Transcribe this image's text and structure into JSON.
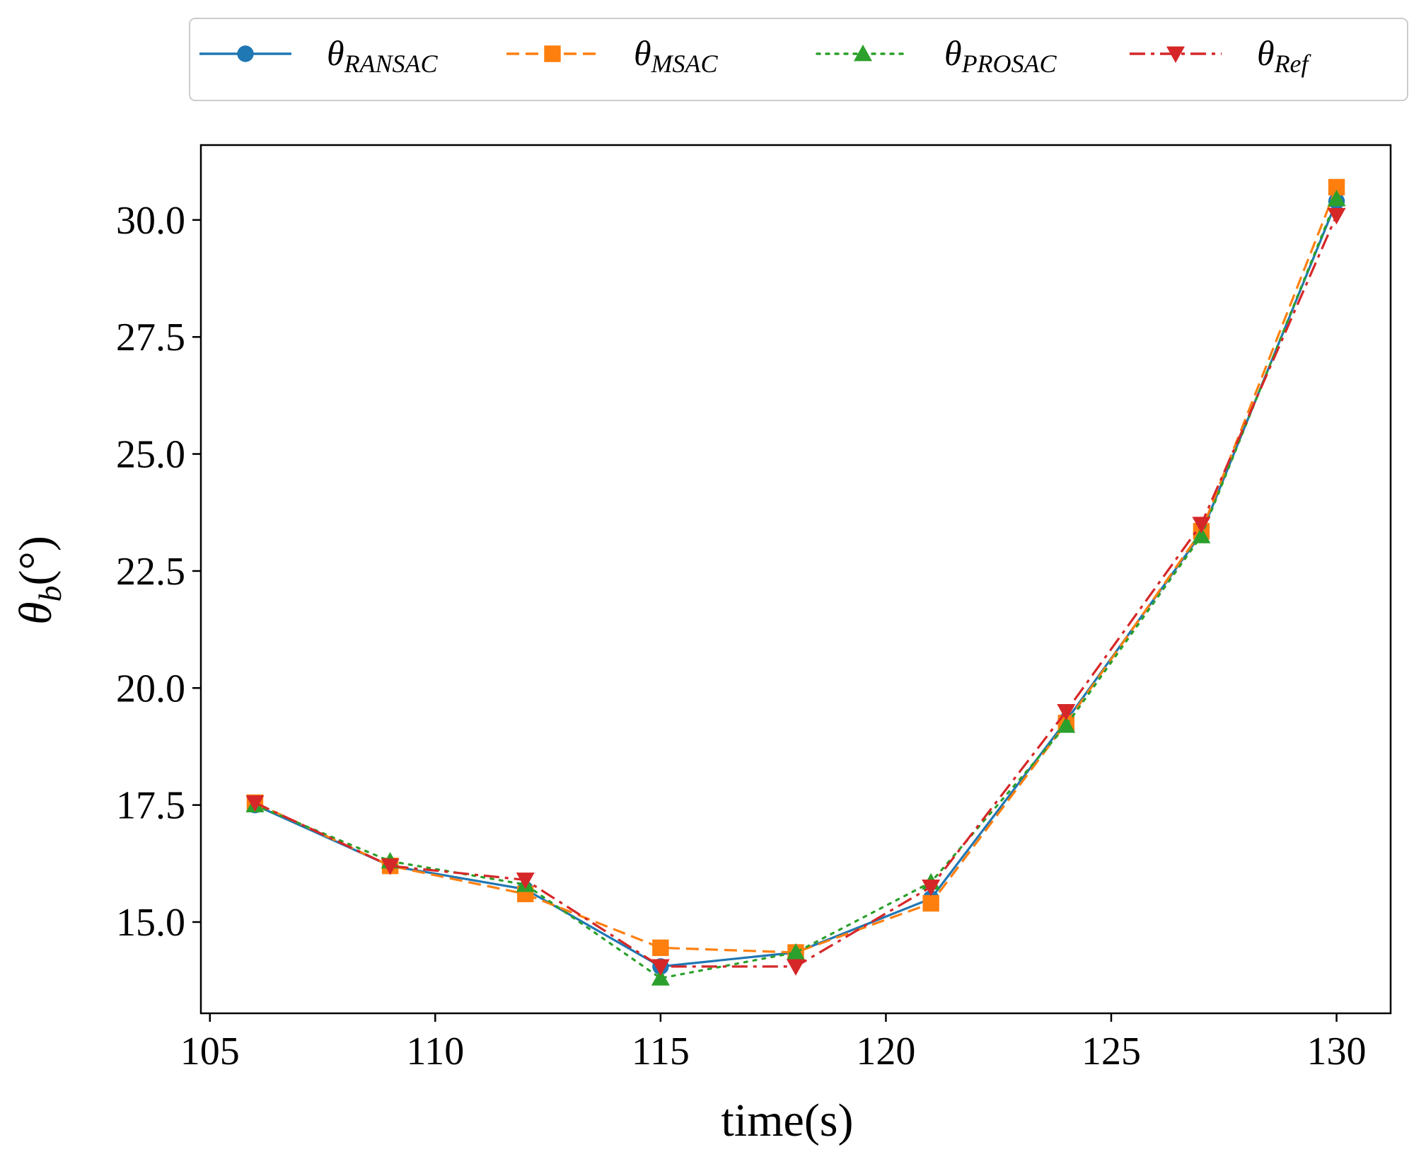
{
  "chart_data": {
    "type": "line",
    "xlabel": "time(s)",
    "ylabel_main": "θ",
    "ylabel_sub": "b",
    "ylabel_unit": "(°)",
    "xlim": [
      104.8,
      131.2
    ],
    "ylim": [
      13.05,
      31.6
    ],
    "xticks": [
      105,
      110,
      115,
      120,
      125,
      130
    ],
    "yticks": [
      15.0,
      17.5,
      20.0,
      22.5,
      25.0,
      27.5,
      30.0
    ],
    "grid": false,
    "legend_position": "top",
    "x": [
      106,
      109,
      112,
      115,
      118,
      121,
      124,
      127,
      130
    ],
    "series": [
      {
        "name_main": "θ",
        "name_sub": "RANSAC",
        "color": "#1f77b4",
        "marker": "circle",
        "linestyle": "solid",
        "values": [
          17.5,
          16.2,
          15.7,
          14.05,
          14.35,
          15.5,
          19.3,
          23.3,
          30.4
        ]
      },
      {
        "name_main": "θ",
        "name_sub": "MSAC",
        "color": "#ff7f0e",
        "marker": "square",
        "linestyle": "dashed",
        "values": [
          17.55,
          16.2,
          15.6,
          14.45,
          14.35,
          15.4,
          19.25,
          23.35,
          30.7
        ]
      },
      {
        "name_main": "θ",
        "name_sub": "PROSAC",
        "color": "#2ca02c",
        "marker": "triangle-up",
        "linestyle": "dotted",
        "values": [
          17.5,
          16.3,
          15.8,
          13.8,
          14.35,
          15.85,
          19.2,
          23.25,
          30.45
        ]
      },
      {
        "name_main": "θ",
        "name_sub": "Ref",
        "color": "#d62728",
        "marker": "triangle-down",
        "linestyle": "dashdot",
        "values": [
          17.55,
          16.2,
          15.9,
          14.05,
          14.05,
          15.75,
          19.5,
          23.5,
          30.1
        ]
      }
    ]
  }
}
